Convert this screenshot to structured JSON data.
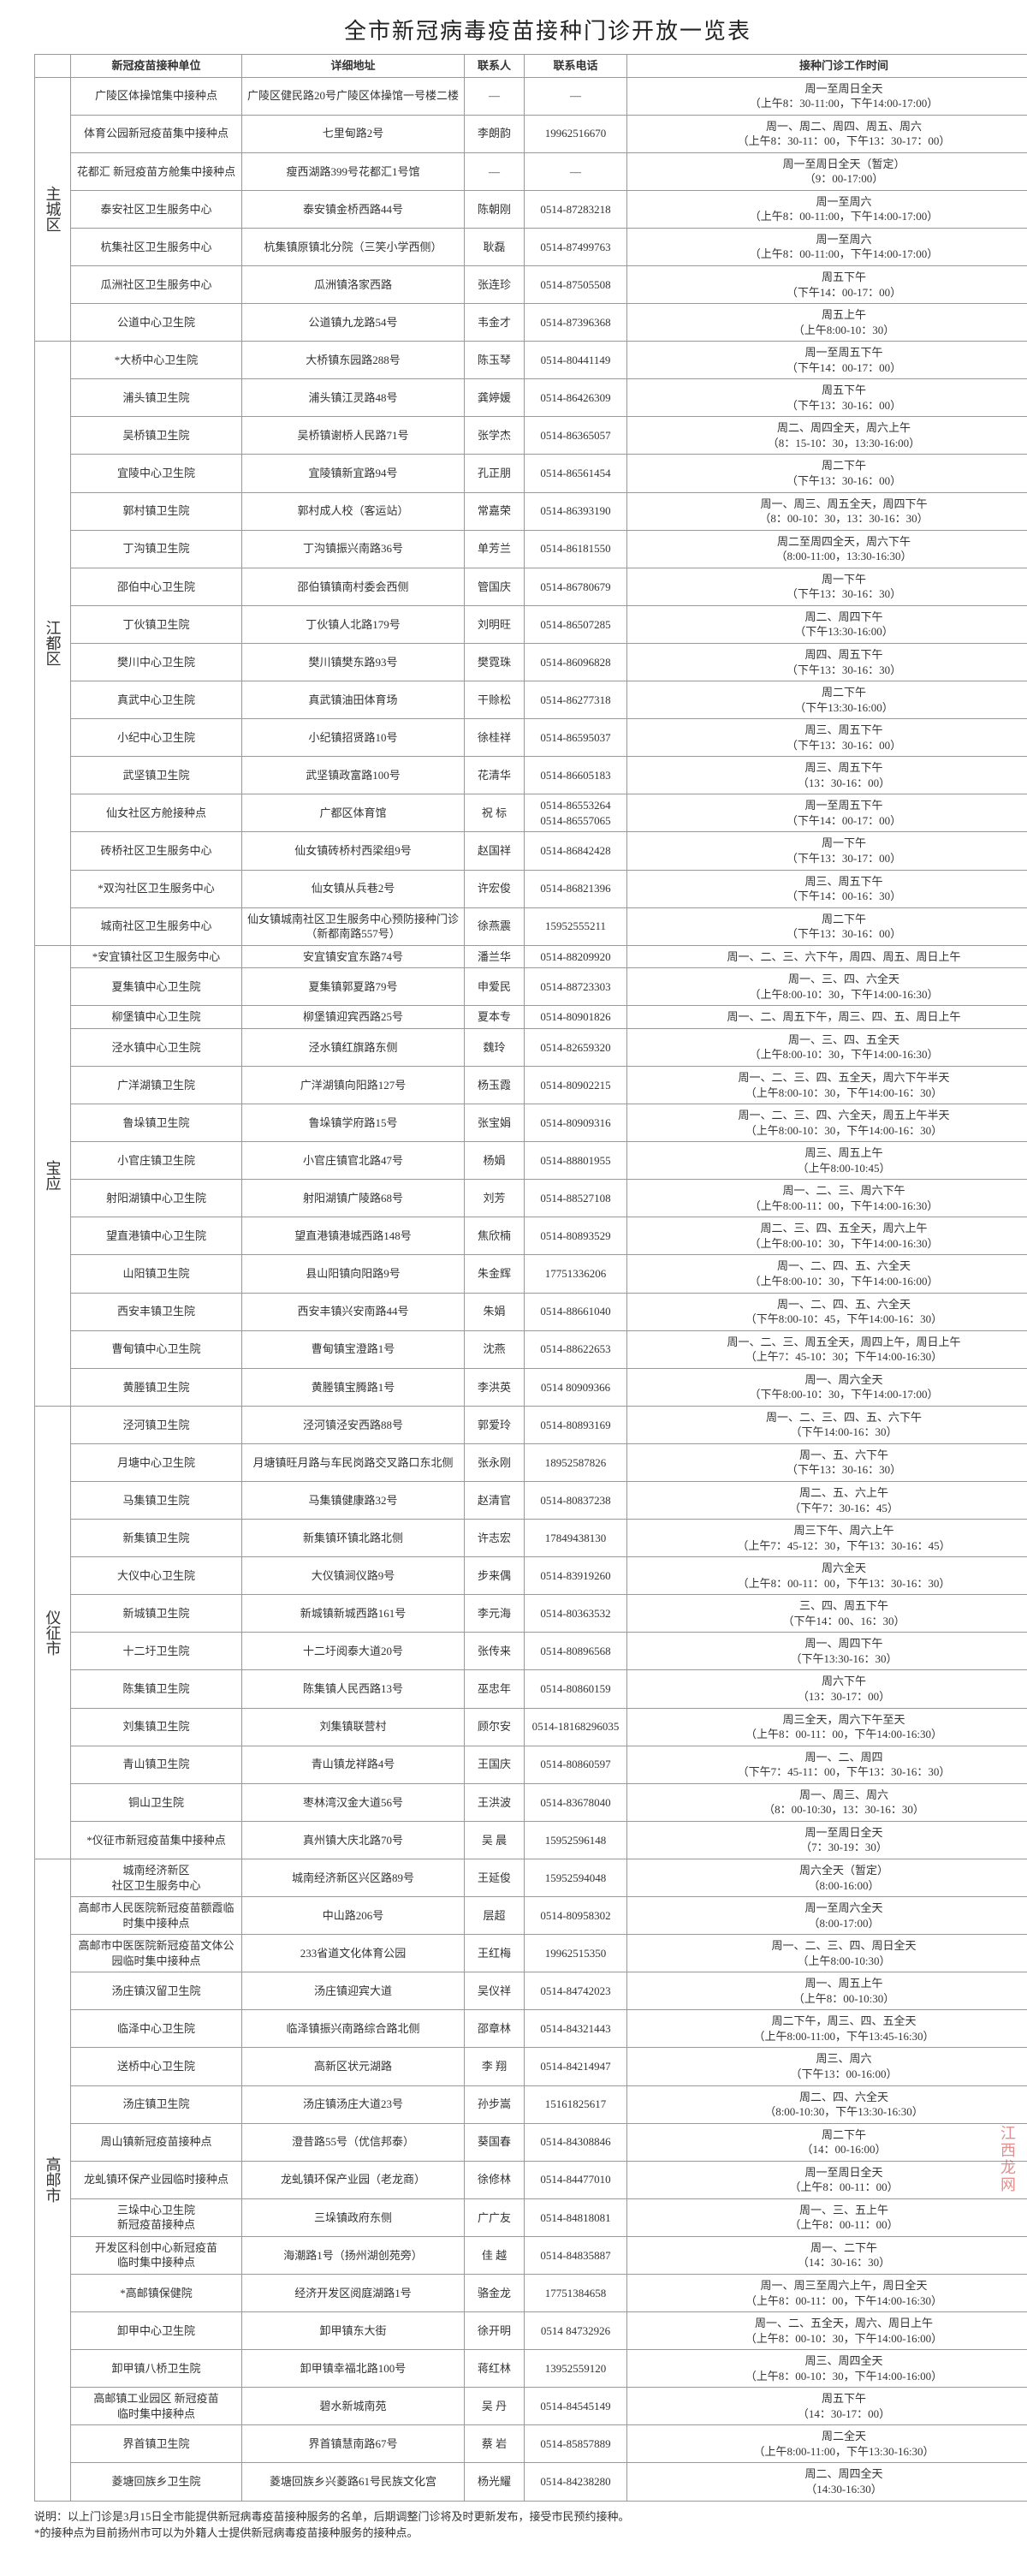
{
  "title": "全市新冠病毒疫苗接种门诊开放一览表",
  "watermark": "江西龙网",
  "headers": {
    "unit": "新冠疫苗接种单位",
    "addr": "详细地址",
    "contact": "联系人",
    "phone": "联系电话",
    "hours": "接种门诊工作时间"
  },
  "note": "说明：以上门诊是3月15日全市能提供新冠病毒疫苗接种服务的名单，后期调整门诊将及时更新发布，接受市民预约接种。\n*的接种点为目前扬州市可以为外籍人士提供新冠病毒疫苗接种服务的接种点。",
  "regions": [
    {
      "name": "主城区",
      "rows": [
        {
          "unit": "广陵区体操馆集中接种点",
          "addr": "广陵区健民路20号广陵区体操馆一号楼二楼",
          "contact": "—",
          "phone": "—",
          "hours": "周一至周日全天\n（上午8：30-11:00，下午14:00-17:00）"
        },
        {
          "unit": "体育公园新冠疫苗集中接种点",
          "addr": "七里甸路2号",
          "contact": "李朗韵",
          "phone": "19962516670",
          "hours": "周一、周二、周四、周五、周六\n（上午8：30-11：00，下午13：30-17：00）"
        },
        {
          "unit": "花都汇 新冠疫苗方舱集中接种点",
          "addr": "瘦西湖路399号花都汇1号馆",
          "contact": "—",
          "phone": "—",
          "hours": "周一至周日全天（暂定）\n（9：00-17:00）"
        },
        {
          "unit": "泰安社区卫生服务中心",
          "addr": "泰安镇金桥西路44号",
          "contact": "陈朝刚",
          "phone": "0514-87283218",
          "hours": "周一至周六\n（上午8：00-11:00，下午14:00-17:00）"
        },
        {
          "unit": "杭集社区卫生服务中心",
          "addr": "杭集镇原镇北分院（三笑小学西侧）",
          "contact": "耿磊",
          "phone": "0514-87499763",
          "hours": "周一至周六\n（上午8：00-11:00，下午14:00-17:00）"
        },
        {
          "unit": "瓜洲社区卫生服务中心",
          "addr": "瓜洲镇洛家西路",
          "contact": "张连珍",
          "phone": "0514-87505508",
          "hours": "周五下午\n（下午14：00-17：00）"
        },
        {
          "unit": "公道中心卫生院",
          "addr": "公道镇九龙路54号",
          "contact": "韦金才",
          "phone": "0514-87396368",
          "hours": "周五上午\n（上午8:00-10：30）"
        }
      ]
    },
    {
      "name": "江都区",
      "rows": [
        {
          "unit": "*大桥中心卫生院",
          "addr": "大桥镇东园路288号",
          "contact": "陈玉琴",
          "phone": "0514-80441149",
          "hours": "周一至周五下午\n（下午14：00-17：00）"
        },
        {
          "unit": "浦头镇卫生院",
          "addr": "浦头镇江灵路48号",
          "contact": "龚婷媛",
          "phone": "0514-86426309",
          "hours": "周五下午\n（下午13：30-16：00）"
        },
        {
          "unit": "吴桥镇卫生院",
          "addr": "吴桥镇谢桥人民路71号",
          "contact": "张学杰",
          "phone": "0514-86365057",
          "hours": "周二、周四全天，周六上午\n（8：15-10：30，13:30-16:00）"
        },
        {
          "unit": "宜陵中心卫生院",
          "addr": "宜陵镇新宜路94号",
          "contact": "孔正朋",
          "phone": "0514-86561454",
          "hours": "周二下午\n（下午13：30-16：00）"
        },
        {
          "unit": "郭村镇卫生院",
          "addr": "郭村成人校（客运站）",
          "contact": "常嘉荣",
          "phone": "0514-86393190",
          "hours": "周一、周三、周五全天，周四下午\n（8：00-10：30，13：30-16：30）"
        },
        {
          "unit": "丁沟镇卫生院",
          "addr": "丁沟镇振兴南路36号",
          "contact": "单芳兰",
          "phone": "0514-86181550",
          "hours": "周二至周四全天，周六下午\n（8:00-11:00，13:30-16:30）"
        },
        {
          "unit": "邵伯中心卫生院",
          "addr": "邵伯镇镇南村委会西侧",
          "contact": "管国庆",
          "phone": "0514-86780679",
          "hours": "周一下午\n（下午13：30-16：30）"
        },
        {
          "unit": "丁伙镇卫生院",
          "addr": "丁伙镇人北路179号",
          "contact": "刘明旺",
          "phone": "0514-86507285",
          "hours": "周二、周四下午\n（下午13:30-16:00）"
        },
        {
          "unit": "樊川中心卫生院",
          "addr": "樊川镇樊东路93号",
          "contact": "樊霓珠",
          "phone": "0514-86096828",
          "hours": "周四、周五下午\n（下午13：30-16：30）"
        },
        {
          "unit": "真武中心卫生院",
          "addr": "真武镇油田体育场",
          "contact": "干赊松",
          "phone": "0514-86277318",
          "hours": "周二下午\n（下午13:30-16:00）"
        },
        {
          "unit": "小纪中心卫生院",
          "addr": "小纪镇招贤路10号",
          "contact": "徐桂祥",
          "phone": "0514-86595037",
          "hours": "周三、周五下午\n（下午13：30-16：00）"
        },
        {
          "unit": "武坚镇卫生院",
          "addr": "武坚镇政富路100号",
          "contact": "花清华",
          "phone": "0514-86605183",
          "hours": "周三、周五下午\n（13：30-16：00）"
        },
        {
          "unit": "仙女社区方舱接种点",
          "addr": "广都区体育馆",
          "contact": "祝 标",
          "phone": "0514-86553264\n0514-86557065",
          "hours": "周一至周五下午\n（下午14：00-17：00）"
        },
        {
          "unit": "砖桥社区卫生服务中心",
          "addr": "仙女镇砖桥村西梁组9号",
          "contact": "赵国祥",
          "phone": "0514-86842428",
          "hours": "周一下午\n（下午13：30-17：00）"
        },
        {
          "unit": "*双沟社区卫生服务中心",
          "addr": "仙女镇从兵巷2号",
          "contact": "许宏俊",
          "phone": "0514-86821396",
          "hours": "周三、周五下午\n（下午14：00-16：30）"
        },
        {
          "unit": "城南社区卫生服务中心",
          "addr": "仙女镇城南社区卫生服务中心预防接种门诊（新都南路557号）",
          "contact": "徐燕震",
          "phone": "15952555211",
          "hours": "周二下午\n（下午13：30-16：00）"
        }
      ]
    },
    {
      "name": "宝应",
      "rows": [
        {
          "unit": "*安宜镇社区卫生服务中心",
          "addr": "安宜镇安宜东路74号",
          "contact": "潘兰华",
          "phone": "0514-88209920",
          "hours": "周一、二、三、六下午，周四、周五、周日上午"
        },
        {
          "unit": "夏集镇中心卫生院",
          "addr": "夏集镇郭夏路79号",
          "contact": "申爱民",
          "phone": "0514-88723303",
          "hours": "周一、三、四、六全天\n（上午8:00-10：30，下午14:00-16:30）"
        },
        {
          "unit": "柳堡镇中心卫生院",
          "addr": "柳堡镇迎宾西路25号",
          "contact": "夏本专",
          "phone": "0514-80901826",
          "hours": "周一、二、周五下午，周三、四、五、周日上午"
        },
        {
          "unit": "泾水镇中心卫生院",
          "addr": "泾水镇红旗路东侧",
          "contact": "魏玲",
          "phone": "0514-82659320",
          "hours": "周一、三、四、五全天\n（上午8:00-10：30，下午14:00-16:30）"
        },
        {
          "unit": "广洋湖镇卫生院",
          "addr": "广洋湖镇向阳路127号",
          "contact": "杨玉霞",
          "phone": "0514-80902215",
          "hours": "周一、二、三、四、五全天，周六下午半天\n（上午8:00-10：30，下午14:00-16：30）"
        },
        {
          "unit": "鲁垛镇卫生院",
          "addr": "鲁垛镇学府路15号",
          "contact": "张宝娟",
          "phone": "0514-80909316",
          "hours": "周一、二、三、四、六全天，周五上午半天\n（上午8:00-10：30，下午14:00-16：30）"
        },
        {
          "unit": "小官庄镇卫生院",
          "addr": "小官庄镇官北路47号",
          "contact": "杨娟",
          "phone": "0514-88801955",
          "hours": "周三、周五上午\n（上午8:00-10:45）"
        },
        {
          "unit": "射阳湖镇中心卫生院",
          "addr": "射阳湖镇广陵路68号",
          "contact": "刘芳",
          "phone": "0514-88527108",
          "hours": "周一、二、三、周六下午\n（上午8:00-11：00，下午14:00-16:30）"
        },
        {
          "unit": "望直港镇中心卫生院",
          "addr": "望直港镇港城西路148号",
          "contact": "焦欣楠",
          "phone": "0514-80893529",
          "hours": "周二、三、四、五全天，周六上午\n（上午8:00-10：30，下午14:00-16:30）"
        },
        {
          "unit": "山阳镇卫生院",
          "addr": "县山阳镇向阳路9号",
          "contact": "朱金辉",
          "phone": "17751336206",
          "hours": "周一、二、四、五、六全天\n（上午8:00-10：30，下午14:00-16:00）"
        },
        {
          "unit": "西安丰镇卫生院",
          "addr": "西安丰镇兴安南路44号",
          "contact": "朱娟",
          "phone": "0514-88661040",
          "hours": "周一、二、四、五、六全天\n（下午8:00-10：45，下午14:00-16：30）"
        },
        {
          "unit": "曹甸镇中心卫生院",
          "addr": "曹甸镇宝澄路1号",
          "contact": "沈燕",
          "phone": "0514-88622653",
          "hours": "周一、二、三、周五全天，周四上午，周日上午\n（上午7：45-10：30；下午14:00-16:30）"
        },
        {
          "unit": "黄塍镇卫生院",
          "addr": "黄塍镇宝腾路1号",
          "contact": "李洪英",
          "phone": "0514 80909366",
          "hours": "周一、周六全天\n（下午8:00-10：30，下午14:00-17:00）"
        }
      ]
    },
    {
      "name": "仪征市",
      "rows": [
        {
          "unit": "泾河镇卫生院",
          "addr": "泾河镇泾安西路88号",
          "contact": "郭爱玲",
          "phone": "0514-80893169",
          "hours": "周一、二、三、四、五、六下午\n（下午14:00-16：30）"
        },
        {
          "unit": "月塘中心卫生院",
          "addr": "月塘镇旺月路与车民岗路交叉路口东北侧",
          "contact": "张永刚",
          "phone": "18952587826",
          "hours": "周一、五、六下午\n（下午13：30-16：30）"
        },
        {
          "unit": "马集镇卫生院",
          "addr": "马集镇健康路32号",
          "contact": "赵清官",
          "phone": "0514-80837238",
          "hours": "周二、五、六上午\n（下午7：30-16：45）"
        },
        {
          "unit": "新集镇卫生院",
          "addr": "新集镇环镇北路北侧",
          "contact": "许志宏",
          "phone": "17849438130",
          "hours": "周三下午、周六上午\n（上午7：45-12：30，下午13：30-16：45）"
        },
        {
          "unit": "大仪中心卫生院",
          "addr": "大仪镇涧仪路9号",
          "contact": "步来偶",
          "phone": "0514-83919260",
          "hours": "周六全天\n（上午8：00-11：00，下午13：30-16：30）"
        },
        {
          "unit": "新城镇卫生院",
          "addr": "新城镇新城西路161号",
          "contact": "李元海",
          "phone": "0514-80363532",
          "hours": "三、四、周五下午\n（下午14：00、16：30）"
        },
        {
          "unit": "十二圩卫生院",
          "addr": "十二圩阅泰大道20号",
          "contact": "张传来",
          "phone": "0514-80896568",
          "hours": "周一、周四下午\n（下午13:30-16：30）"
        },
        {
          "unit": "陈集镇卫生院",
          "addr": "陈集镇人民西路13号",
          "contact": "巫忠年",
          "phone": "0514-80860159",
          "hours": "周六下午\n（13：30-17：00）"
        },
        {
          "unit": "刘集镇卫生院",
          "addr": "刘集镇联营村",
          "contact": "顾尔安",
          "phone": "0514-18168296035",
          "hours": "周三全天，周六下午至天\n（上午8：00-11：00，下午14:00-16:30）"
        },
        {
          "unit": "青山镇卫生院",
          "addr": "青山镇龙祥路4号",
          "contact": "王国庆",
          "phone": "0514-80860597",
          "hours": "周一、二、周四\n（下午7：45-11：00，下午13：30-16：30）"
        },
        {
          "unit": "铜山卫生院",
          "addr": "枣林湾汉金大道56号",
          "contact": "王洪波",
          "phone": "0514-83678040",
          "hours": "周一、周三、周六\n（8：00-10:30，13：30-16：30）"
        },
        {
          "unit": "*仪征市新冠疫苗集中接种点",
          "addr": "真州镇大庆北路70号",
          "contact": "吴 晨",
          "phone": "15952596148",
          "hours": "周一至周日全天\n（7：30-19：30）"
        }
      ]
    },
    {
      "name": "高邮市",
      "rows": [
        {
          "unit": "城南经济新区\n社区卫生服务中心",
          "addr": "城南经济新区兴区路89号",
          "contact": "王延俊",
          "phone": "15952594048",
          "hours": "周六全天（暂定）\n（8:00-16:00）"
        },
        {
          "unit": "高邮市人民医院新冠疫苗额霞临时集中接种点",
          "addr": "中山路206号",
          "contact": "层超",
          "phone": "0514-80958302",
          "hours": "周一至周六全天\n（8:00-17:00）"
        },
        {
          "unit": "高邮市中医医院新冠疫苗文体公园临时集中接种点",
          "addr": "233省道文化体育公园",
          "contact": "王红梅",
          "phone": "19962515350",
          "hours": "周一、二、三、四、周日全天\n（上午8:00-10:30）"
        },
        {
          "unit": "汤庄镇汉留卫生院",
          "addr": "汤庄镇迎宾大道",
          "contact": "吴仪祥",
          "phone": "0514-84742023",
          "hours": "周一、周五上午\n（上午8：00-10:30）"
        },
        {
          "unit": "临泽中心卫生院",
          "addr": "临泽镇振兴南路综合路北侧",
          "contact": "邵章林",
          "phone": "0514-84321443",
          "hours": "周二下午，周三、四、五全天\n（上午8:00-11:00，下午13:45-16:30）"
        },
        {
          "unit": "送桥中心卫生院",
          "addr": "高新区状元湖路",
          "contact": "李 翔",
          "phone": "0514-84214947",
          "hours": "周三、周六\n（下午13：00-16:00）"
        },
        {
          "unit": "汤庄镇卫生院",
          "addr": "汤庄镇汤庄大道23号",
          "contact": "孙步嵩",
          "phone": "15161825617",
          "hours": "周二、四、六全天\n（8:00-10:30，下午13:30-16:30）"
        },
        {
          "unit": "周山镇新冠疫苗接种点",
          "addr": "澄昔路55号（优信邦泰）",
          "contact": "葵国春",
          "phone": "0514-84308846",
          "hours": "周二下午\n（14：00-16:00）"
        },
        {
          "unit": "龙虬镇环保产业园临时接种点",
          "addr": "龙虬镇环保产业园（老龙商）",
          "contact": "徐修林",
          "phone": "0514-84477010",
          "hours": "周一至周日全天\n（上午8：00-11：00）"
        },
        {
          "unit": "三垛中心卫生院\n新冠疫苗接种点",
          "addr": "三垛镇政府东侧",
          "contact": "广广友",
          "phone": "0514-84818081",
          "hours": "周一、三、五上午\n（上午8：00-11：00）"
        },
        {
          "unit": "开发区科创中心新冠疫苗\n临时集中接种点",
          "addr": "海潮路1号（扬州湖创苑旁）",
          "contact": "佳 越",
          "phone": "0514-84835887",
          "hours": "周一、二下午\n（14：30-16：30）"
        },
        {
          "unit": "*高邮镇保健院",
          "addr": "经济开发区阅庭湖路1号",
          "contact": "骆金龙",
          "phone": "17751384658",
          "hours": "周一、周三至周六上午，周日全天\n（上午8：00-11：00，下午14:00-16:30）"
        },
        {
          "unit": "卸甲中心卫生院",
          "addr": "卸甲镇东大街",
          "contact": "徐开明",
          "phone": "0514 84732926",
          "hours": "周一、二、五全天，周六、周日上午\n（上午8：00-10：30，下午14:00-16:00）"
        },
        {
          "unit": "卸甲镇八桥卫生院",
          "addr": "卸甲镇幸福北路100号",
          "contact": "蒋红林",
          "phone": "13952559120",
          "hours": "周三、周四全天\n（上午8：00-10：30，下午14:00-16:00）"
        },
        {
          "unit": "高邮镇工业园区 新冠疫苗\n临时集中接种点",
          "addr": "碧水新城南苑",
          "contact": "吴 丹",
          "phone": "0514-84545149",
          "hours": "周五下午\n（14：30-17：00）"
        },
        {
          "unit": "界首镇卫生院",
          "addr": "界首镇慧南路67号",
          "contact": "蔡 岩",
          "phone": "0514-85857889",
          "hours": "周二全天\n（上午8:00-11:00，下午13:30-16:30）"
        },
        {
          "unit": "菱塘回族乡卫生院",
          "addr": "菱塘回族乡兴菱路61号民族文化宫",
          "contact": "杨光耀",
          "phone": "0514-84238280",
          "hours": "周二、周四全天\n（14:30-16:30）"
        }
      ]
    }
  ]
}
